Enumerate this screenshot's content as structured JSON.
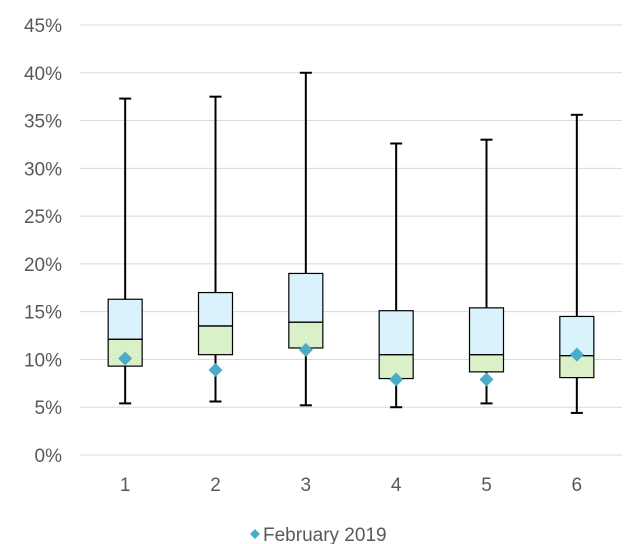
{
  "chart_data": {
    "type": "box",
    "categories": [
      "1",
      "2",
      "3",
      "4",
      "5",
      "6"
    ],
    "y_ticks": [
      "0%",
      "5%",
      "10%",
      "15%",
      "20%",
      "25%",
      "30%",
      "35%",
      "40%",
      "45%"
    ],
    "ylim": [
      0,
      45
    ],
    "grid": true,
    "legend_position": "bottom",
    "boxes": [
      {
        "category": "1",
        "min": 5.4,
        "q1": 9.3,
        "median": 12.1,
        "q3": 16.3,
        "max": 37.3
      },
      {
        "category": "2",
        "min": 5.6,
        "q1": 10.5,
        "median": 13.5,
        "q3": 17.0,
        "max": 37.5
      },
      {
        "category": "3",
        "min": 5.2,
        "q1": 11.2,
        "median": 13.9,
        "q3": 19.0,
        "max": 40.0
      },
      {
        "category": "4",
        "min": 5.0,
        "q1": 8.0,
        "median": 10.5,
        "q3": 15.1,
        "max": 32.6
      },
      {
        "category": "5",
        "min": 5.4,
        "q1": 8.7,
        "median": 10.5,
        "q3": 15.4,
        "max": 33.0
      },
      {
        "category": "6",
        "min": 4.4,
        "q1": 8.1,
        "median": 10.4,
        "q3": 14.5,
        "max": 35.6
      }
    ],
    "series": [
      {
        "name": "February 2019",
        "marker": "diamond",
        "values": [
          10.1,
          8.9,
          11.0,
          7.9,
          7.9,
          10.5
        ]
      }
    ],
    "colors": {
      "upper_box": "#d9f2fc",
      "lower_box": "#d9f0c8",
      "marker": "#4bacc6",
      "grid": "#d9d9d9",
      "stroke": "#000000"
    }
  }
}
